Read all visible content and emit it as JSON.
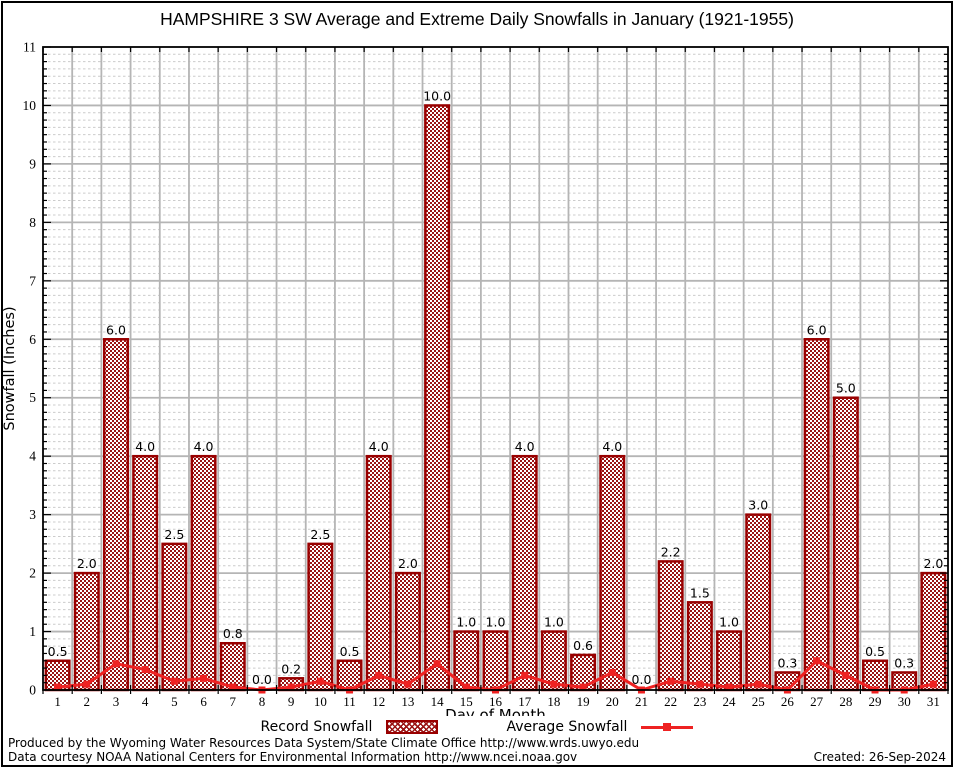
{
  "title": "HAMPSHIRE 3 SW Average and Extreme Daily Snowfalls in January (1921-1955)",
  "chart_data": {
    "type": "bar",
    "title": "HAMPSHIRE 3 SW Average and Extreme Daily Snowfalls in January (1921-1955)",
    "xlabel": "Day of Month",
    "ylabel": "Snowfall (Inches)",
    "ylim": [
      0,
      11
    ],
    "y_major_ticks": [
      0,
      1,
      2,
      3,
      4,
      5,
      6,
      7,
      8,
      9,
      10,
      11
    ],
    "y_minor_step": 0.125,
    "grid": true,
    "legend_position": "bottom",
    "categories": [
      1,
      2,
      3,
      4,
      5,
      6,
      7,
      8,
      9,
      10,
      11,
      12,
      13,
      14,
      15,
      16,
      17,
      18,
      19,
      20,
      21,
      22,
      23,
      24,
      25,
      26,
      27,
      28,
      29,
      30,
      31
    ],
    "series": [
      {
        "name": "Record Snowfall",
        "type": "bar",
        "color": "#990000",
        "labels_shown": true,
        "values": [
          0.5,
          2.0,
          6.0,
          4.0,
          2.5,
          4.0,
          0.8,
          0.0,
          0.2,
          2.5,
          0.5,
          4.0,
          2.0,
          10.0,
          1.0,
          1.0,
          4.0,
          1.0,
          0.6,
          4.0,
          0.0,
          2.2,
          1.5,
          1.0,
          3.0,
          0.3,
          6.0,
          5.0,
          0.5,
          0.3,
          2.0
        ]
      },
      {
        "name": "Average Snowfall",
        "type": "line",
        "color": "#ee2222",
        "labels_shown": false,
        "values": [
          0.05,
          0.1,
          0.45,
          0.35,
          0.15,
          0.2,
          0.05,
          0.0,
          0.05,
          0.15,
          0.0,
          0.25,
          0.1,
          0.45,
          0.05,
          0.0,
          0.25,
          0.1,
          0.05,
          0.3,
          0.0,
          0.15,
          0.1,
          0.05,
          0.1,
          0.0,
          0.5,
          0.25,
          0.0,
          0.0,
          0.1
        ]
      }
    ]
  },
  "legend": {
    "record_label": "Record Snowfall",
    "average_label": "Average Snowfall"
  },
  "footer": {
    "line1": "Produced by the Wyoming Water Resources Data System/State Climate Office http://www.wrds.uwyo.edu",
    "line2": "Data courtesy NOAA National Centers for Environmental Information http://www.ncei.noaa.gov",
    "created": "Created: 26-Sep-2024"
  },
  "colors": {
    "bar_outline": "#990000",
    "bar_hatch": "#9a1414",
    "line": "#ee2222",
    "grid_major": "#b5b5b5",
    "grid_minor": "#cccccc"
  }
}
